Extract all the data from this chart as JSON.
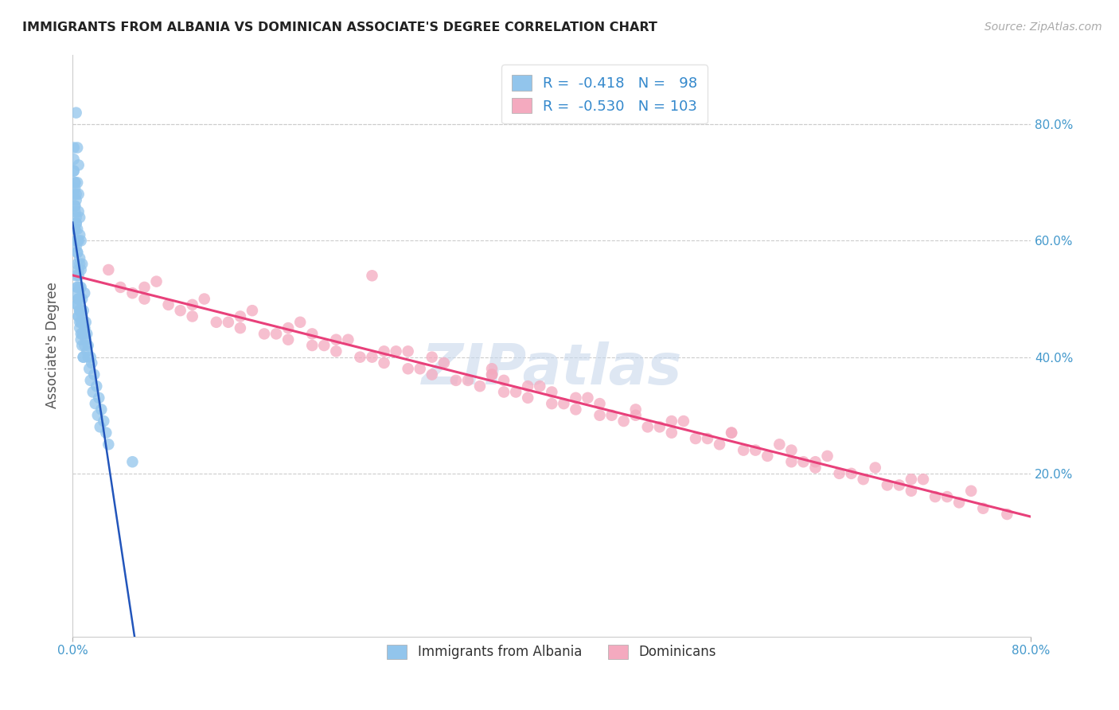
{
  "title": "IMMIGRANTS FROM ALBANIA VS DOMINICAN ASSOCIATE'S DEGREE CORRELATION CHART",
  "source": "Source: ZipAtlas.com",
  "ylabel": "Associate's Degree",
  "ytick_values": [
    0.2,
    0.4,
    0.6,
    0.8
  ],
  "xlim": [
    0.0,
    0.8
  ],
  "ylim": [
    -0.08,
    0.92
  ],
  "blue_color": "#92C5EC",
  "pink_color": "#F4AABF",
  "blue_line_color": "#2255BB",
  "pink_line_color": "#E8407A",
  "blue_line_dashed_color": "#8AAAD0",
  "watermark_color": "#C8D8EC",
  "albania_x": [
    0.003,
    0.004,
    0.004,
    0.005,
    0.005,
    0.005,
    0.006,
    0.006,
    0.006,
    0.007,
    0.007,
    0.007,
    0.008,
    0.008,
    0.008,
    0.009,
    0.01,
    0.01,
    0.011,
    0.012,
    0.002,
    0.002,
    0.003,
    0.003,
    0.004,
    0.004,
    0.005,
    0.005,
    0.006,
    0.006,
    0.001,
    0.001,
    0.002,
    0.002,
    0.002,
    0.003,
    0.003,
    0.003,
    0.004,
    0.004,
    0.001,
    0.001,
    0.001,
    0.002,
    0.002,
    0.002,
    0.003,
    0.003,
    0.004,
    0.005,
    0.013,
    0.015,
    0.016,
    0.018,
    0.02,
    0.022,
    0.024,
    0.026,
    0.028,
    0.03,
    0.01,
    0.011,
    0.012,
    0.013,
    0.014,
    0.015,
    0.017,
    0.019,
    0.021,
    0.023,
    0.005,
    0.006,
    0.006,
    0.007,
    0.007,
    0.008,
    0.008,
    0.009,
    0.009,
    0.01,
    0.004,
    0.004,
    0.005,
    0.005,
    0.006,
    0.006,
    0.007,
    0.007,
    0.008,
    0.009,
    0.003,
    0.003,
    0.004,
    0.004,
    0.005,
    0.005,
    0.006,
    0.05
  ],
  "albania_y": [
    0.82,
    0.76,
    0.7,
    0.73,
    0.68,
    0.65,
    0.64,
    0.61,
    0.57,
    0.6,
    0.55,
    0.52,
    0.56,
    0.5,
    0.47,
    0.48,
    0.51,
    0.45,
    0.46,
    0.44,
    0.7,
    0.66,
    0.68,
    0.63,
    0.62,
    0.58,
    0.6,
    0.55,
    0.56,
    0.52,
    0.74,
    0.72,
    0.69,
    0.65,
    0.62,
    0.67,
    0.63,
    0.59,
    0.6,
    0.56,
    0.76,
    0.72,
    0.68,
    0.7,
    0.66,
    0.62,
    0.64,
    0.6,
    0.58,
    0.54,
    0.42,
    0.4,
    0.39,
    0.37,
    0.35,
    0.33,
    0.31,
    0.29,
    0.27,
    0.25,
    0.45,
    0.43,
    0.41,
    0.4,
    0.38,
    0.36,
    0.34,
    0.32,
    0.3,
    0.28,
    0.5,
    0.48,
    0.46,
    0.48,
    0.44,
    0.46,
    0.42,
    0.44,
    0.4,
    0.42,
    0.52,
    0.49,
    0.5,
    0.47,
    0.48,
    0.45,
    0.46,
    0.43,
    0.44,
    0.4,
    0.54,
    0.51,
    0.52,
    0.49,
    0.5,
    0.47,
    0.48,
    0.22
  ],
  "dominican_x": [
    0.04,
    0.06,
    0.08,
    0.1,
    0.12,
    0.14,
    0.16,
    0.18,
    0.2,
    0.22,
    0.24,
    0.26,
    0.28,
    0.3,
    0.32,
    0.34,
    0.36,
    0.38,
    0.4,
    0.42,
    0.44,
    0.46,
    0.48,
    0.5,
    0.52,
    0.54,
    0.56,
    0.58,
    0.6,
    0.62,
    0.64,
    0.66,
    0.68,
    0.7,
    0.72,
    0.74,
    0.76,
    0.78,
    0.05,
    0.09,
    0.13,
    0.17,
    0.21,
    0.25,
    0.29,
    0.33,
    0.37,
    0.41,
    0.45,
    0.49,
    0.53,
    0.57,
    0.61,
    0.65,
    0.69,
    0.73,
    0.07,
    0.11,
    0.15,
    0.19,
    0.23,
    0.27,
    0.31,
    0.35,
    0.39,
    0.43,
    0.47,
    0.51,
    0.55,
    0.59,
    0.63,
    0.67,
    0.71,
    0.75,
    0.03,
    0.06,
    0.1,
    0.14,
    0.18,
    0.22,
    0.26,
    0.3,
    0.35,
    0.4,
    0.5,
    0.6,
    0.7,
    0.36,
    0.44,
    0.55,
    0.35,
    0.2,
    0.28,
    0.42,
    0.38,
    0.47,
    0.62,
    0.25
  ],
  "dominican_y": [
    0.52,
    0.5,
    0.49,
    0.47,
    0.46,
    0.45,
    0.44,
    0.43,
    0.42,
    0.41,
    0.4,
    0.39,
    0.38,
    0.37,
    0.36,
    0.35,
    0.34,
    0.33,
    0.32,
    0.31,
    0.3,
    0.29,
    0.28,
    0.27,
    0.26,
    0.25,
    0.24,
    0.23,
    0.22,
    0.21,
    0.2,
    0.19,
    0.18,
    0.17,
    0.16,
    0.15,
    0.14,
    0.13,
    0.51,
    0.48,
    0.46,
    0.44,
    0.42,
    0.4,
    0.38,
    0.36,
    0.34,
    0.32,
    0.3,
    0.28,
    0.26,
    0.24,
    0.22,
    0.2,
    0.18,
    0.16,
    0.53,
    0.5,
    0.48,
    0.46,
    0.43,
    0.41,
    0.39,
    0.37,
    0.35,
    0.33,
    0.31,
    0.29,
    0.27,
    0.25,
    0.23,
    0.21,
    0.19,
    0.17,
    0.55,
    0.52,
    0.49,
    0.47,
    0.45,
    0.43,
    0.41,
    0.4,
    0.37,
    0.34,
    0.29,
    0.24,
    0.19,
    0.36,
    0.32,
    0.27,
    0.38,
    0.44,
    0.41,
    0.33,
    0.35,
    0.3,
    0.22,
    0.54
  ]
}
